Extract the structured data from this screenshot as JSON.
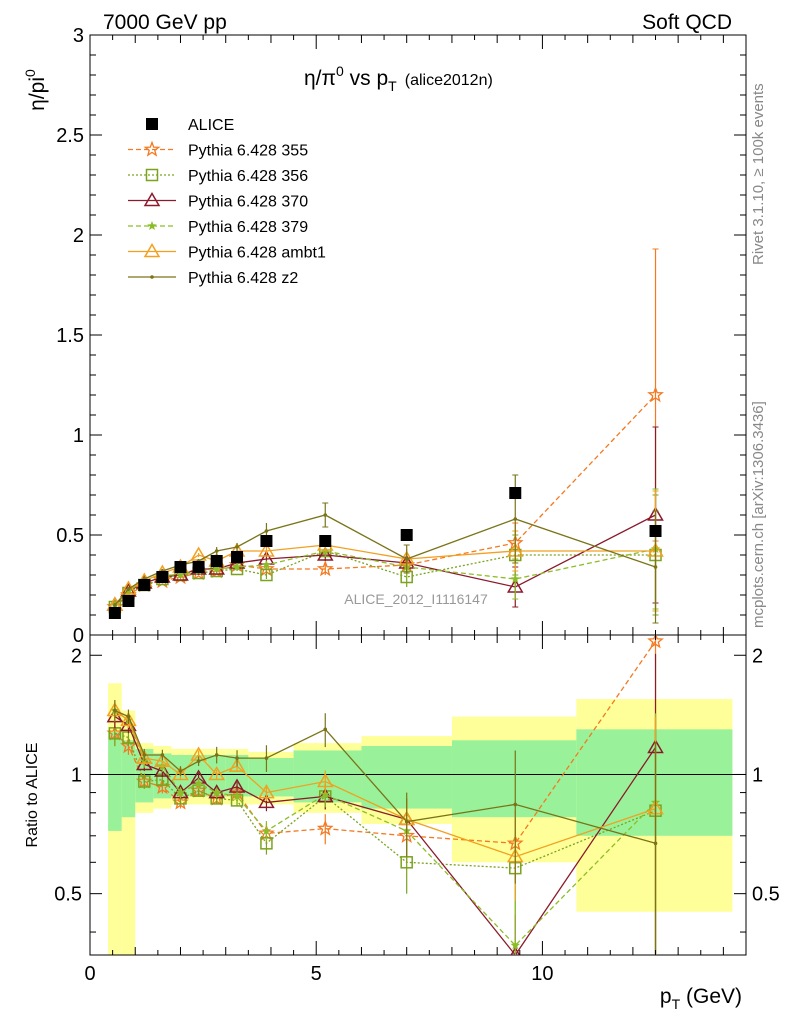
{
  "header": {
    "left": "7000 GeV pp",
    "right": "Soft QCD"
  },
  "side_labels": {
    "rivet": "Rivet 3.1.10, ≥ 100k events",
    "mcplots": "mcplots.cern.ch [arXiv:1306.3436]"
  },
  "watermark": "ALICE_2012_I1116147",
  "chart_data": {
    "type": "scatter",
    "title": {
      "main": "η/π",
      "sup": "0",
      "mid": " vs p",
      "sub": "T",
      "tail": "(alice2012n)"
    },
    "ylabel": {
      "main": "η/pi",
      "sup": "0"
    },
    "ratio_ylabel": "Ratio to ALICE",
    "xlabel": {
      "main": "p",
      "sub": "T",
      "tail": " (GeV)"
    },
    "xlim": [
      0,
      14.5
    ],
    "ylim": [
      0,
      3
    ],
    "ratio_ylim": [
      0.35,
      2.25
    ],
    "x_ticks": [
      "0",
      "5",
      "10"
    ],
    "y_ticks": [
      "0",
      "0.5",
      "1",
      "1.5",
      "2",
      "2.5",
      "3"
    ],
    "ratio_y_ticks": [
      "0.5",
      "1",
      "2"
    ],
    "legend": [
      {
        "label": "ALICE",
        "color": "#000000",
        "marker": "square-filled",
        "dash": "none"
      },
      {
        "label": "Pythia 6.428 355",
        "color": "#f47920",
        "marker": "star-open",
        "dash": "dashed"
      },
      {
        "label": "Pythia 6.428 356",
        "color": "#7aa31e",
        "marker": "square-open",
        "dash": "dotted"
      },
      {
        "label": "Pythia 6.428 370",
        "color": "#8b1a2b",
        "marker": "triangle-open",
        "dash": "solid"
      },
      {
        "label": "Pythia 6.428 379",
        "color": "#8cbd28",
        "marker": "star-filled",
        "dash": "dashed"
      },
      {
        "label": "Pythia 6.428 ambt1",
        "color": "#f2a020",
        "marker": "triangle-open",
        "dash": "solid"
      },
      {
        "label": "Pythia 6.428 z2",
        "color": "#7a7418",
        "marker": "dot",
        "dash": "solid"
      }
    ],
    "x": [
      0.55,
      0.85,
      1.2,
      1.6,
      2.0,
      2.4,
      2.8,
      3.25,
      3.9,
      5.2,
      7.0,
      9.4,
      12.5
    ],
    "data": {
      "name": "ALICE",
      "values": [
        0.11,
        0.17,
        0.25,
        0.29,
        0.34,
        0.34,
        0.37,
        0.39,
        0.47,
        0.47,
        0.5,
        0.71,
        0.52
      ],
      "band_edges": [
        0.4,
        0.7,
        1.0,
        1.4,
        1.8,
        2.2,
        2.6,
        3.0,
        3.5,
        4.5,
        6.0,
        8.0,
        10.75,
        14.2
      ],
      "band_inner": [
        [
          0.72,
          1.28
        ],
        [
          0.78,
          1.22
        ],
        [
          0.85,
          1.16
        ],
        [
          0.87,
          1.13
        ],
        [
          0.88,
          1.12
        ],
        [
          0.88,
          1.12
        ],
        [
          0.88,
          1.12
        ],
        [
          0.88,
          1.12
        ],
        [
          0.88,
          1.1
        ],
        [
          0.85,
          1.15
        ],
        [
          0.82,
          1.18
        ],
        [
          0.78,
          1.22
        ],
        [
          0.7,
          1.3
        ],
        [
          0.45,
          1.6
        ]
      ],
      "band_outer": [
        [
          0.3,
          1.7
        ],
        [
          0.3,
          1.45
        ],
        [
          0.8,
          1.2
        ],
        [
          0.82,
          1.18
        ],
        [
          0.84,
          1.16
        ],
        [
          0.84,
          1.16
        ],
        [
          0.84,
          1.16
        ],
        [
          0.84,
          1.16
        ],
        [
          0.84,
          1.14
        ],
        [
          0.8,
          1.2
        ],
        [
          0.75,
          1.25
        ],
        [
          0.6,
          1.4
        ],
        [
          0.45,
          1.55
        ],
        [
          0.3,
          2.05
        ]
      ]
    },
    "series": [
      {
        "values": [
          0.14,
          0.2,
          0.25,
          0.27,
          0.29,
          0.31,
          0.32,
          0.35,
          0.33,
          0.33,
          0.35,
          0.46,
          1.2
        ],
        "err": [
          0.01,
          0.01,
          0.01,
          0.01,
          0.01,
          0.01,
          0.01,
          0.01,
          0.02,
          0.03,
          0.05,
          0.1,
          0.73
        ]
      },
      {
        "values": [
          0.14,
          0.21,
          0.25,
          0.28,
          0.3,
          0.31,
          0.32,
          0.33,
          0.3,
          0.42,
          0.29,
          0.4,
          0.4
        ],
        "err": [
          0.01,
          0.01,
          0.01,
          0.01,
          0.01,
          0.01,
          0.01,
          0.01,
          0.02,
          0.03,
          0.05,
          0.1,
          0.3
        ]
      },
      {
        "values": [
          0.15,
          0.22,
          0.26,
          0.29,
          0.3,
          0.33,
          0.33,
          0.36,
          0.38,
          0.4,
          0.36,
          0.24,
          0.6
        ],
        "err": [
          0.01,
          0.01,
          0.01,
          0.01,
          0.01,
          0.01,
          0.01,
          0.01,
          0.02,
          0.03,
          0.05,
          0.1,
          0.44
        ]
      },
      {
        "values": [
          0.15,
          0.22,
          0.27,
          0.3,
          0.3,
          0.32,
          0.33,
          0.34,
          0.35,
          0.42,
          0.34,
          0.28,
          0.43
        ],
        "err": [
          0.01,
          0.01,
          0.01,
          0.01,
          0.01,
          0.01,
          0.01,
          0.01,
          0.02,
          0.03,
          0.05,
          0.1,
          0.3
        ]
      },
      {
        "values": [
          0.15,
          0.23,
          0.27,
          0.31,
          0.34,
          0.4,
          0.37,
          0.42,
          0.42,
          0.45,
          0.38,
          0.42,
          0.42
        ],
        "err": [
          0.01,
          0.01,
          0.01,
          0.01,
          0.01,
          0.01,
          0.01,
          0.01,
          0.02,
          0.03,
          0.05,
          0.1,
          0.3
        ]
      },
      {
        "values": [
          0.15,
          0.23,
          0.28,
          0.32,
          0.35,
          0.37,
          0.42,
          0.44,
          0.52,
          0.6,
          0.38,
          0.58,
          0.34
        ],
        "err": [
          0.01,
          0.01,
          0.01,
          0.01,
          0.01,
          0.01,
          0.02,
          0.02,
          0.04,
          0.06,
          0.07,
          0.22,
          0.28
        ]
      }
    ],
    "ratio_series": [
      [
        1.27,
        1.18,
        0.96,
        0.93,
        0.85,
        0.91,
        0.87,
        0.9,
        0.71,
        0.73,
        0.7,
        0.67,
        2.17
      ],
      [
        1.27,
        1.24,
        0.96,
        0.97,
        0.87,
        0.91,
        0.87,
        0.86,
        0.67,
        0.88,
        0.6,
        0.58,
        0.81
      ],
      [
        1.4,
        1.33,
        1.06,
        1.02,
        0.9,
        0.98,
        0.9,
        0.93,
        0.85,
        0.88,
        0.77,
        0.3,
        1.17
      ],
      [
        1.45,
        1.37,
        1.08,
        1.05,
        0.9,
        0.95,
        0.9,
        0.88,
        0.72,
        0.89,
        0.72,
        0.37,
        0.85
      ],
      [
        1.45,
        1.37,
        1.1,
        1.08,
        1.0,
        1.12,
        1.0,
        1.05,
        0.9,
        0.96,
        0.77,
        0.62,
        0.82
      ],
      [
        1.45,
        1.4,
        1.12,
        1.12,
        1.02,
        1.08,
        1.12,
        1.1,
        1.1,
        1.3,
        0.76,
        0.84,
        0.67
      ]
    ]
  }
}
